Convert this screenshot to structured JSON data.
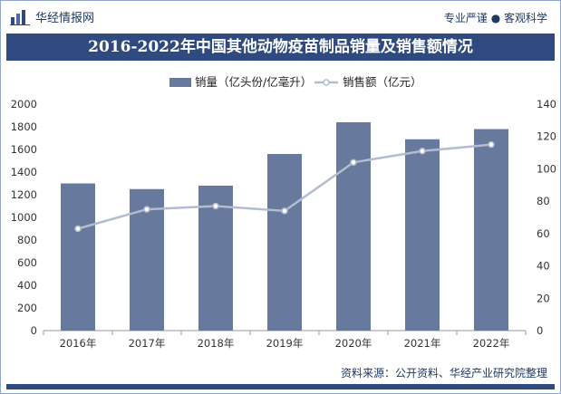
{
  "header": {
    "brand": "华经情报网",
    "brand_icon": "bar-chart-logo-icon",
    "slogan": "专业严谨 ● 客观科学"
  },
  "title": "2016-2022年中国其他动物疫苗制品销量及销售额情况",
  "source": "资料来源：公开资料、华经产业研究院整理",
  "colors": {
    "accent": "#2f4a7f",
    "bar": "#67799c",
    "line": "#b2bcd0",
    "marker_fill": "#ffffff"
  },
  "chart_data": {
    "type": "bar",
    "categories": [
      "2016年",
      "2017年",
      "2018年",
      "2019年",
      "2020年",
      "2021年",
      "2022年"
    ],
    "series": [
      {
        "name": "销量（亿头份/亿毫升）",
        "type": "bar",
        "axis": "left",
        "values": [
          1300,
          1250,
          1280,
          1560,
          1840,
          1690,
          1780
        ]
      },
      {
        "name": "销售额（亿元）",
        "type": "line",
        "axis": "right",
        "values": [
          63,
          75,
          77,
          74,
          104,
          111,
          115
        ]
      }
    ],
    "left_axis": {
      "min": 0,
      "max": 2000,
      "step": 200,
      "ticks": [
        "0",
        "200",
        "400",
        "600",
        "800",
        "1000",
        "1200",
        "1400",
        "1600",
        "1800",
        "2000"
      ]
    },
    "right_axis": {
      "min": 0,
      "max": 140,
      "step": 20,
      "ticks": [
        "0",
        "20",
        "40",
        "60",
        "80",
        "100",
        "120",
        "140"
      ]
    },
    "grid": false,
    "legend_position": "top-center"
  }
}
